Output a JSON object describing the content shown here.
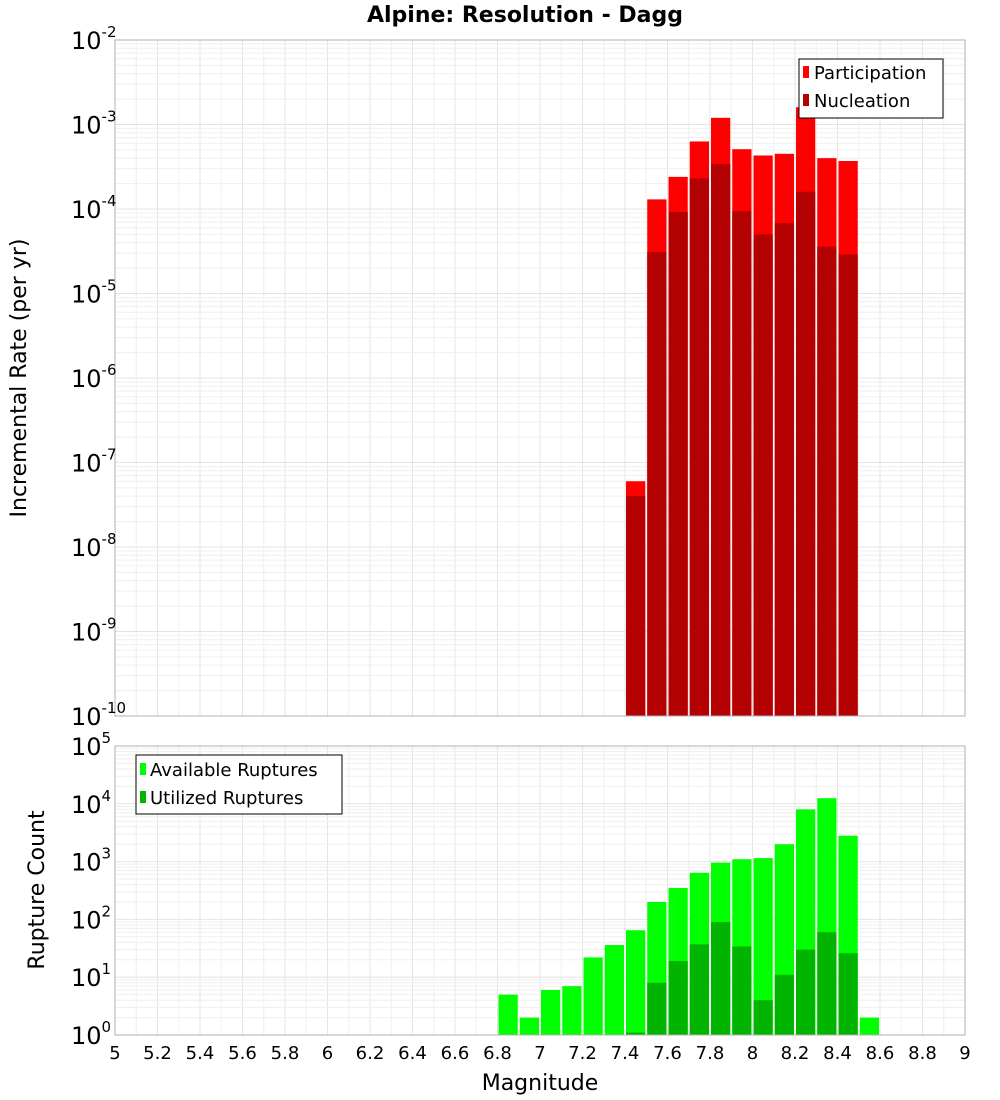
{
  "chart_data": [
    {
      "type": "bar",
      "title": "Alpine: Resolution - Dagg",
      "xlabel": "",
      "ylabel": "Incremental Rate (per yr)",
      "yscale": "log",
      "ylim_exp": [
        -10,
        -2
      ],
      "xlim": [
        5,
        9
      ],
      "bin_width": 0.1,
      "grid": true,
      "legend_position": "top-right",
      "series": [
        {
          "name": "Participation",
          "color": "#ff0000",
          "x": [
            7.45,
            7.55,
            7.65,
            7.75,
            7.85,
            7.95,
            8.05,
            8.15,
            8.25,
            8.35,
            8.45
          ],
          "values": [
            6e-08,
            0.00013,
            0.00024,
            0.00063,
            0.0012,
            0.00051,
            0.00043,
            0.00045,
            0.0016,
            0.0004,
            0.00037
          ]
        },
        {
          "name": "Nucleation",
          "color": "#b30000",
          "x": [
            7.45,
            7.55,
            7.65,
            7.75,
            7.85,
            7.95,
            8.05,
            8.15,
            8.25,
            8.35,
            8.45
          ],
          "values": [
            4e-08,
            3.1e-05,
            9.2e-05,
            0.00023,
            0.00034,
            9.4e-05,
            5e-05,
            6.8e-05,
            0.00016,
            3.6e-05,
            2.9e-05
          ]
        }
      ]
    },
    {
      "type": "bar",
      "title": "",
      "xlabel": "Magnitude",
      "ylabel": "Rupture Count",
      "yscale": "log",
      "ylim_exp": [
        0,
        5
      ],
      "xlim": [
        5,
        9
      ],
      "bin_width": 0.1,
      "grid": true,
      "legend_position": "top-left",
      "x_ticks": [
        "5",
        "5.2",
        "5.4",
        "5.6",
        "5.8",
        "6",
        "6.2",
        "6.4",
        "6.6",
        "6.8",
        "7",
        "7.2",
        "7.4",
        "7.6",
        "7.8",
        "8",
        "8.2",
        "8.4",
        "8.6",
        "8.8",
        "9"
      ],
      "series": [
        {
          "name": "Available Ruptures",
          "color": "#00ff00",
          "x": [
            6.85,
            6.95,
            7.05,
            7.15,
            7.25,
            7.35,
            7.45,
            7.55,
            7.65,
            7.75,
            7.85,
            7.95,
            8.05,
            8.15,
            8.25,
            8.35,
            8.45,
            8.55
          ],
          "values": [
            5,
            2,
            6,
            7,
            22,
            36,
            65,
            200,
            350,
            640,
            960,
            1100,
            1150,
            2000,
            8000,
            12500,
            2800,
            2
          ]
        },
        {
          "name": "Utilized Ruptures",
          "color": "#00b400",
          "x": [
            7.45,
            7.55,
            7.65,
            7.75,
            7.85,
            7.95,
            8.05,
            8.15,
            8.25,
            8.35,
            8.45
          ],
          "values": [
            1.1,
            8,
            19,
            37,
            90,
            34,
            4,
            11,
            30,
            60,
            26
          ]
        }
      ]
    }
  ]
}
